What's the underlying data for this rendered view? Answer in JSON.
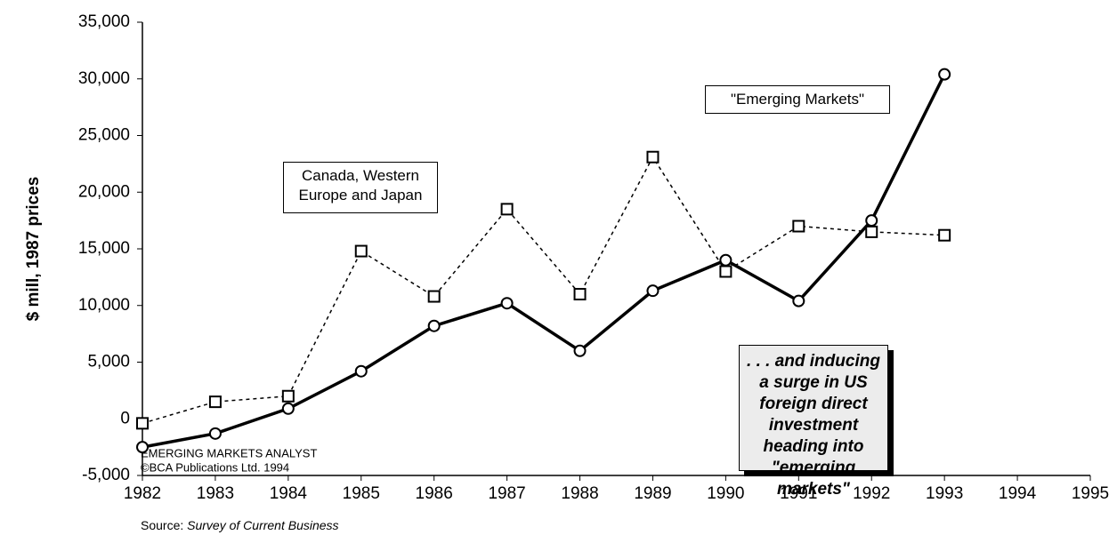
{
  "chart_data": {
    "type": "line",
    "y_label": "$ mill, 1987 prices",
    "x": [
      1982,
      1983,
      1984,
      1985,
      1986,
      1987,
      1988,
      1989,
      1990,
      1991,
      1992,
      1993
    ],
    "series": [
      {
        "name": "\"Emerging Markets\"",
        "color": "#000000",
        "line_style": "solid",
        "marker": "circle",
        "values": [
          -2500,
          -1300,
          900,
          4200,
          8200,
          10200,
          6000,
          11300,
          14000,
          10400,
          17500,
          30400
        ]
      },
      {
        "name": "Canada, Western Europe and Japan",
        "color": "#000000",
        "line_style": "dashed",
        "marker": "square",
        "values": [
          -400,
          1500,
          2000,
          14800,
          10800,
          18500,
          11000,
          23100,
          13000,
          17000,
          16500,
          16200
        ]
      }
    ],
    "xlim": [
      1982,
      1995
    ],
    "xticks": [
      1982,
      1983,
      1984,
      1985,
      1986,
      1987,
      1988,
      1989,
      1990,
      1991,
      1992,
      1993,
      1994,
      1995
    ],
    "ylim": [
      -5000,
      35000
    ],
    "yticks": [
      {
        "value": -5000,
        "label": "-5,000"
      },
      0,
      {
        "value": 5000,
        "label": "5,000"
      },
      {
        "value": 10000,
        "label": "10,000"
      },
      {
        "value": 15000,
        "label": "15,000"
      },
      {
        "value": 20000,
        "label": "20,000"
      },
      {
        "value": 25000,
        "label": "25,000"
      },
      {
        "value": 30000,
        "label": "30,000"
      },
      {
        "value": 35000,
        "label": "35,000"
      }
    ],
    "grid": false,
    "annotations": [
      "EMERGING MARKETS ANALYST",
      "©BCA Publications Ltd. 1994",
      ". . . and inducing a surge in US foreign direct investment heading into \"emerging markets\""
    ],
    "source_prefix": "Source:",
    "source": "Survey of Current Business"
  }
}
